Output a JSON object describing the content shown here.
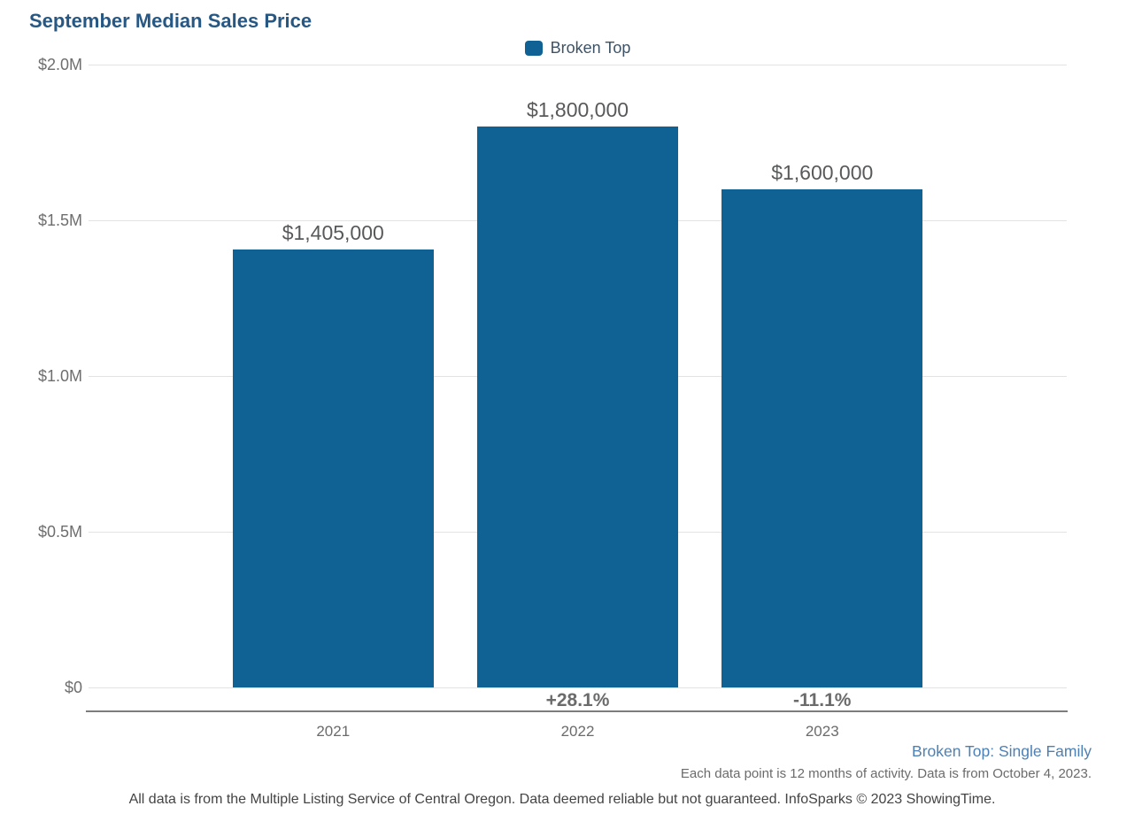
{
  "page_title": "September Median Sales Price",
  "legend": {
    "label": "Broken Top"
  },
  "chart_data": {
    "type": "bar",
    "title": "September Median Sales Price",
    "series_name": "Broken Top",
    "categories": [
      "2021",
      "2022",
      "2023"
    ],
    "values": [
      1405000,
      1800000,
      1600000
    ],
    "value_labels": [
      "$1,405,000",
      "$1,800,000",
      "$1,600,000"
    ],
    "pct_change_labels": [
      "",
      "+28.1%",
      "-11.1%"
    ],
    "xlabel": "",
    "ylabel": "",
    "ylim": [
      0,
      2000000
    ],
    "y_ticks": [
      {
        "label": "$2.0M",
        "value": 2000000
      },
      {
        "label": "$1.5M",
        "value": 1500000
      },
      {
        "label": "$1.0M",
        "value": 1000000
      },
      {
        "label": "$0.5M",
        "value": 500000
      },
      {
        "label": "$0",
        "value": 0
      }
    ],
    "grid": true,
    "legend_position": "top-center",
    "colors": {
      "bar": "#106194",
      "title": "#265883",
      "grid": "#e3e3e3",
      "axis_line": "#7d7d7d",
      "value_label": "#58595b",
      "tick_label": "#6e6e6e",
      "pct_label": "#6b6b6b",
      "series_footnote": "#4d80b5"
    }
  },
  "footnotes": {
    "series_info": "Broken Top: Single Family",
    "data_note": "Each data point is 12 months of activity. Data is from October 4, 2023.",
    "disclaimer": "All data is from the Multiple Listing Service of Central Oregon. Data deemed reliable but not guaranteed. InfoSparks © 2023 ShowingTime."
  }
}
